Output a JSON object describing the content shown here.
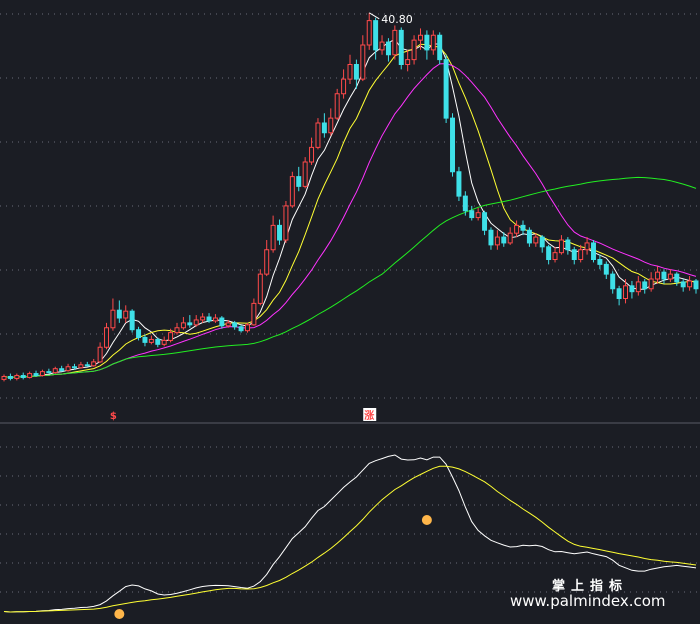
{
  "watermark": {
    "title": "掌上指标",
    "url": "www.palmindex.com"
  },
  "chart_data": {
    "type": "candlestick",
    "high_label": "40.80",
    "signal_labels": [
      "$",
      "涨"
    ],
    "colors": {
      "background": "#1b1d24",
      "up": "#ff4a4a",
      "down": "#3fe0e8",
      "ma_fast": "#ffffff",
      "ma_mid": "#ffff33",
      "ma_slow": "#ff33ff",
      "ma_long": "#22ee22",
      "grid": "#6a6a78",
      "osc_fast": "#ffffff",
      "osc_slow": "#ffff33",
      "marker": "#ffb64a"
    },
    "price_range": [
      1.5,
      41.5
    ],
    "candles": [
      {
        "o": 3.2,
        "c": 3.5,
        "h": 3.7,
        "l": 3.0
      },
      {
        "o": 3.5,
        "c": 3.3,
        "h": 3.8,
        "l": 3.1
      },
      {
        "o": 3.3,
        "c": 3.6,
        "h": 3.8,
        "l": 3.1
      },
      {
        "o": 3.6,
        "c": 3.4,
        "h": 3.9,
        "l": 3.2
      },
      {
        "o": 3.4,
        "c": 3.8,
        "h": 4.0,
        "l": 3.3
      },
      {
        "o": 3.8,
        "c": 3.6,
        "h": 4.1,
        "l": 3.5
      },
      {
        "o": 3.6,
        "c": 4.0,
        "h": 4.2,
        "l": 3.5
      },
      {
        "o": 4.0,
        "c": 3.9,
        "h": 4.3,
        "l": 3.8
      },
      {
        "o": 3.9,
        "c": 4.3,
        "h": 4.5,
        "l": 3.8
      },
      {
        "o": 4.3,
        "c": 4.1,
        "h": 4.6,
        "l": 4.0
      },
      {
        "o": 4.1,
        "c": 4.5,
        "h": 4.8,
        "l": 4.0
      },
      {
        "o": 4.5,
        "c": 4.4,
        "h": 4.8,
        "l": 4.2
      },
      {
        "o": 4.4,
        "c": 4.7,
        "h": 5.0,
        "l": 4.3
      },
      {
        "o": 4.7,
        "c": 4.6,
        "h": 5.0,
        "l": 4.5
      },
      {
        "o": 4.6,
        "c": 5.0,
        "h": 5.3,
        "l": 4.5
      },
      {
        "o": 5.0,
        "c": 6.5,
        "h": 7.0,
        "l": 4.9
      },
      {
        "o": 6.5,
        "c": 8.5,
        "h": 9.0,
        "l": 6.3
      },
      {
        "o": 8.5,
        "c": 10.3,
        "h": 11.5,
        "l": 8.2
      },
      {
        "o": 10.3,
        "c": 9.5,
        "h": 11.3,
        "l": 9.0
      },
      {
        "o": 9.5,
        "c": 10.2,
        "h": 10.8,
        "l": 9.0
      },
      {
        "o": 10.2,
        "c": 8.3,
        "h": 10.4,
        "l": 8.0
      },
      {
        "o": 8.3,
        "c": 7.5,
        "h": 8.6,
        "l": 7.2
      },
      {
        "o": 7.5,
        "c": 7.0,
        "h": 7.8,
        "l": 6.6
      },
      {
        "o": 7.0,
        "c": 7.3,
        "h": 7.7,
        "l": 6.8
      },
      {
        "o": 7.3,
        "c": 6.8,
        "h": 7.5,
        "l": 6.5
      },
      {
        "o": 6.8,
        "c": 7.2,
        "h": 7.6,
        "l": 6.6
      },
      {
        "o": 7.2,
        "c": 8.0,
        "h": 8.4,
        "l": 7.0
      },
      {
        "o": 8.0,
        "c": 8.5,
        "h": 9.0,
        "l": 7.8
      },
      {
        "o": 8.5,
        "c": 9.0,
        "h": 9.6,
        "l": 8.3
      },
      {
        "o": 9.0,
        "c": 8.8,
        "h": 9.8,
        "l": 8.5
      },
      {
        "o": 8.8,
        "c": 9.3,
        "h": 9.8,
        "l": 8.6
      },
      {
        "o": 9.3,
        "c": 9.6,
        "h": 10.0,
        "l": 9.0
      },
      {
        "o": 9.6,
        "c": 9.2,
        "h": 10.0,
        "l": 9.0
      },
      {
        "o": 9.2,
        "c": 9.5,
        "h": 9.9,
        "l": 9.0
      },
      {
        "o": 9.5,
        "c": 8.7,
        "h": 9.7,
        "l": 8.4
      },
      {
        "o": 8.7,
        "c": 9.0,
        "h": 9.3,
        "l": 8.5
      },
      {
        "o": 9.0,
        "c": 8.6,
        "h": 9.2,
        "l": 8.3
      },
      {
        "o": 8.6,
        "c": 8.2,
        "h": 8.8,
        "l": 8.0
      },
      {
        "o": 8.2,
        "c": 8.8,
        "h": 9.0,
        "l": 8.0
      },
      {
        "o": 8.8,
        "c": 11.0,
        "h": 11.5,
        "l": 8.7
      },
      {
        "o": 11.0,
        "c": 14.0,
        "h": 14.5,
        "l": 10.8
      },
      {
        "o": 14.0,
        "c": 16.5,
        "h": 17.5,
        "l": 13.8
      },
      {
        "o": 16.5,
        "c": 19.0,
        "h": 20.0,
        "l": 16.2
      },
      {
        "o": 19.0,
        "c": 17.5,
        "h": 19.6,
        "l": 17.0
      },
      {
        "o": 17.5,
        "c": 21.0,
        "h": 21.5,
        "l": 17.2
      },
      {
        "o": 21.0,
        "c": 24.0,
        "h": 24.5,
        "l": 20.8
      },
      {
        "o": 24.0,
        "c": 23.0,
        "h": 25.0,
        "l": 22.5
      },
      {
        "o": 23.0,
        "c": 25.5,
        "h": 26.0,
        "l": 22.8
      },
      {
        "o": 25.5,
        "c": 27.0,
        "h": 28.0,
        "l": 25.2
      },
      {
        "o": 27.0,
        "c": 29.5,
        "h": 30.0,
        "l": 26.8
      },
      {
        "o": 29.5,
        "c": 28.5,
        "h": 30.5,
        "l": 28.0
      },
      {
        "o": 28.5,
        "c": 30.0,
        "h": 31.0,
        "l": 28.2
      },
      {
        "o": 30.0,
        "c": 32.5,
        "h": 33.0,
        "l": 29.8
      },
      {
        "o": 32.5,
        "c": 34.0,
        "h": 35.0,
        "l": 32.0
      },
      {
        "o": 34.0,
        "c": 35.5,
        "h": 36.5,
        "l": 33.5
      },
      {
        "o": 35.5,
        "c": 34.0,
        "h": 36.0,
        "l": 33.0
      },
      {
        "o": 34.0,
        "c": 37.5,
        "h": 38.5,
        "l": 33.8
      },
      {
        "o": 37.5,
        "c": 40.0,
        "h": 40.8,
        "l": 37.0
      },
      {
        "o": 40.0,
        "c": 37.0,
        "h": 40.3,
        "l": 36.0
      },
      {
        "o": 37.0,
        "c": 37.8,
        "h": 38.5,
        "l": 36.5
      },
      {
        "o": 37.8,
        "c": 36.5,
        "h": 38.2,
        "l": 35.8
      },
      {
        "o": 36.5,
        "c": 39.0,
        "h": 39.5,
        "l": 36.0
      },
      {
        "o": 39.0,
        "c": 35.5,
        "h": 39.3,
        "l": 35.0
      },
      {
        "o": 35.5,
        "c": 36.0,
        "h": 37.0,
        "l": 34.8
      },
      {
        "o": 36.0,
        "c": 38.0,
        "h": 38.5,
        "l": 35.5
      },
      {
        "o": 38.0,
        "c": 38.5,
        "h": 39.2,
        "l": 37.0
      },
      {
        "o": 38.5,
        "c": 37.0,
        "h": 39.0,
        "l": 36.0
      },
      {
        "o": 37.0,
        "c": 38.5,
        "h": 39.0,
        "l": 36.5
      },
      {
        "o": 38.5,
        "c": 36.0,
        "h": 38.8,
        "l": 35.5
      },
      {
        "o": 36.0,
        "c": 30.0,
        "h": 36.5,
        "l": 29.5
      },
      {
        "o": 30.0,
        "c": 24.5,
        "h": 30.5,
        "l": 24.0
      },
      {
        "o": 24.5,
        "c": 22.0,
        "h": 25.0,
        "l": 21.5
      },
      {
        "o": 22.0,
        "c": 20.5,
        "h": 22.5,
        "l": 20.0
      },
      {
        "o": 20.5,
        "c": 19.8,
        "h": 21.0,
        "l": 19.5
      },
      {
        "o": 19.8,
        "c": 20.3,
        "h": 20.8,
        "l": 19.5
      },
      {
        "o": 20.3,
        "c": 18.5,
        "h": 20.5,
        "l": 18.0
      },
      {
        "o": 18.5,
        "c": 17.0,
        "h": 18.8,
        "l": 16.5
      },
      {
        "o": 17.0,
        "c": 17.8,
        "h": 18.5,
        "l": 16.5
      },
      {
        "o": 17.8,
        "c": 17.2,
        "h": 18.3,
        "l": 16.8
      },
      {
        "o": 17.2,
        "c": 18.2,
        "h": 18.8,
        "l": 17.0
      },
      {
        "o": 18.2,
        "c": 19.0,
        "h": 19.5,
        "l": 17.8
      },
      {
        "o": 19.0,
        "c": 18.5,
        "h": 19.5,
        "l": 18.0
      },
      {
        "o": 18.5,
        "c": 17.2,
        "h": 18.8,
        "l": 16.8
      },
      {
        "o": 17.2,
        "c": 17.8,
        "h": 18.2,
        "l": 16.8
      },
      {
        "o": 17.8,
        "c": 16.8,
        "h": 18.0,
        "l": 16.2
      },
      {
        "o": 16.8,
        "c": 15.5,
        "h": 17.0,
        "l": 15.0
      },
      {
        "o": 15.5,
        "c": 16.2,
        "h": 16.8,
        "l": 15.2
      },
      {
        "o": 16.2,
        "c": 17.5,
        "h": 18.0,
        "l": 16.0
      },
      {
        "o": 17.5,
        "c": 16.5,
        "h": 17.8,
        "l": 16.0
      },
      {
        "o": 16.5,
        "c": 15.5,
        "h": 16.8,
        "l": 15.0
      },
      {
        "o": 15.5,
        "c": 16.5,
        "h": 17.0,
        "l": 15.2
      },
      {
        "o": 16.5,
        "c": 17.2,
        "h": 17.8,
        "l": 16.0
      },
      {
        "o": 17.2,
        "c": 15.5,
        "h": 17.5,
        "l": 15.2
      },
      {
        "o": 15.5,
        "c": 15.0,
        "h": 16.0,
        "l": 14.5
      },
      {
        "o": 15.0,
        "c": 14.0,
        "h": 15.3,
        "l": 13.5
      },
      {
        "o": 14.0,
        "c": 12.5,
        "h": 14.3,
        "l": 12.0
      },
      {
        "o": 12.5,
        "c": 11.5,
        "h": 12.8,
        "l": 10.8
      },
      {
        "o": 11.5,
        "c": 12.8,
        "h": 13.5,
        "l": 11.0
      },
      {
        "o": 12.8,
        "c": 12.2,
        "h": 13.3,
        "l": 11.5
      },
      {
        "o": 12.2,
        "c": 13.2,
        "h": 13.8,
        "l": 11.8
      },
      {
        "o": 13.2,
        "c": 12.5,
        "h": 13.5,
        "l": 12.0
      },
      {
        "o": 12.5,
        "c": 13.5,
        "h": 14.2,
        "l": 12.2
      },
      {
        "o": 13.5,
        "c": 14.2,
        "h": 14.8,
        "l": 13.0
      },
      {
        "o": 14.2,
        "c": 13.5,
        "h": 14.5,
        "l": 13.0
      },
      {
        "o": 13.5,
        "c": 14.0,
        "h": 14.5,
        "l": 13.2
      },
      {
        "o": 14.0,
        "c": 13.2,
        "h": 14.2,
        "l": 12.8
      },
      {
        "o": 13.2,
        "c": 12.7,
        "h": 13.5,
        "l": 12.2
      },
      {
        "o": 12.7,
        "c": 13.3,
        "h": 13.8,
        "l": 12.3
      },
      {
        "o": 13.3,
        "c": 12.5,
        "h": 13.5,
        "l": 12.0
      }
    ]
  }
}
